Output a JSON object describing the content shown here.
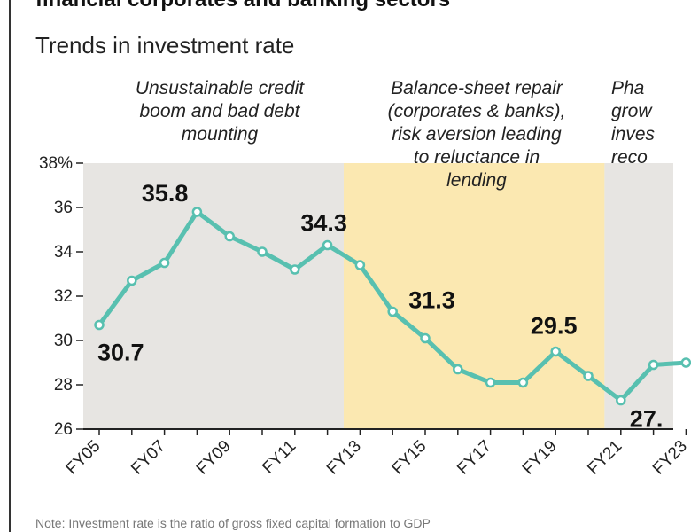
{
  "header": {
    "cut_title": "financial corporates and banking sectors"
  },
  "chart_data": {
    "type": "line",
    "title": "",
    "subtitle": "Trends in investment rate",
    "xlabel": "",
    "ylabel": "",
    "x": [
      "FY05",
      "FY06",
      "FY07",
      "FY08",
      "FY09",
      "FY10",
      "FY11",
      "FY12",
      "FY13",
      "FY14",
      "FY15",
      "FY16",
      "FY17",
      "FY18",
      "FY19",
      "FY20",
      "FY21",
      "FY22",
      "FY23"
    ],
    "x_tick_labels": [
      "FY05",
      "FY07",
      "FY09",
      "FY11",
      "FY13",
      "FY15",
      "FY17",
      "FY19",
      "FY21",
      "FY23"
    ],
    "series": [
      {
        "values": [
          30.7,
          32.7,
          33.5,
          35.8,
          34.7,
          34.0,
          33.2,
          34.3,
          33.4,
          31.3,
          30.1,
          28.7,
          28.1,
          28.1,
          29.5,
          28.4,
          27.3,
          28.9,
          29.0
        ]
      }
    ],
    "ylim": [
      26,
      38
    ],
    "y_ticks": [
      26,
      28,
      30,
      32,
      34,
      36,
      38
    ],
    "y_tick_labels": [
      "26",
      "28",
      "30",
      "32",
      "34",
      "36",
      "38%"
    ],
    "grid": false,
    "colors": {
      "line": "#58c0b0",
      "marker_fill": "#ffffff",
      "marker_edge": "#58c0b0",
      "phase_grey": "#e7e5e2",
      "phase_yellow": "#fbe8b1",
      "axis": "#222222"
    },
    "phases": [
      {
        "label": "Unsustainable credit\nboom and bad debt\nmounting",
        "from": "FY05",
        "to": "FY12",
        "color": "grey"
      },
      {
        "label": "Balance-sheet repair\n(corporates & banks),\nrisk aversion leading\nto reluctance in\nlending",
        "from": "FY13",
        "to": "FY20",
        "color": "yellow"
      },
      {
        "label": "Pha\ngrow\ninves\nreco",
        "from": "FY21",
        "to": "FY23",
        "color": "grey"
      }
    ],
    "annotations": [
      {
        "text": "30.7",
        "x": "FY05",
        "y": 30.7
      },
      {
        "text": "35.8",
        "x": "FY08",
        "y": 35.8
      },
      {
        "text": "34.3",
        "x": "FY12",
        "y": 34.3
      },
      {
        "text": "31.3",
        "x": "FY14",
        "y": 31.3
      },
      {
        "text": "29.5",
        "x": "FY19",
        "y": 29.5
      },
      {
        "text": "27.",
        "x": "FY21",
        "y": 27.3
      }
    ]
  },
  "footer": {
    "cut_note": "Note: Investment rate is the ratio of gross fixed capital formation to GDP"
  }
}
